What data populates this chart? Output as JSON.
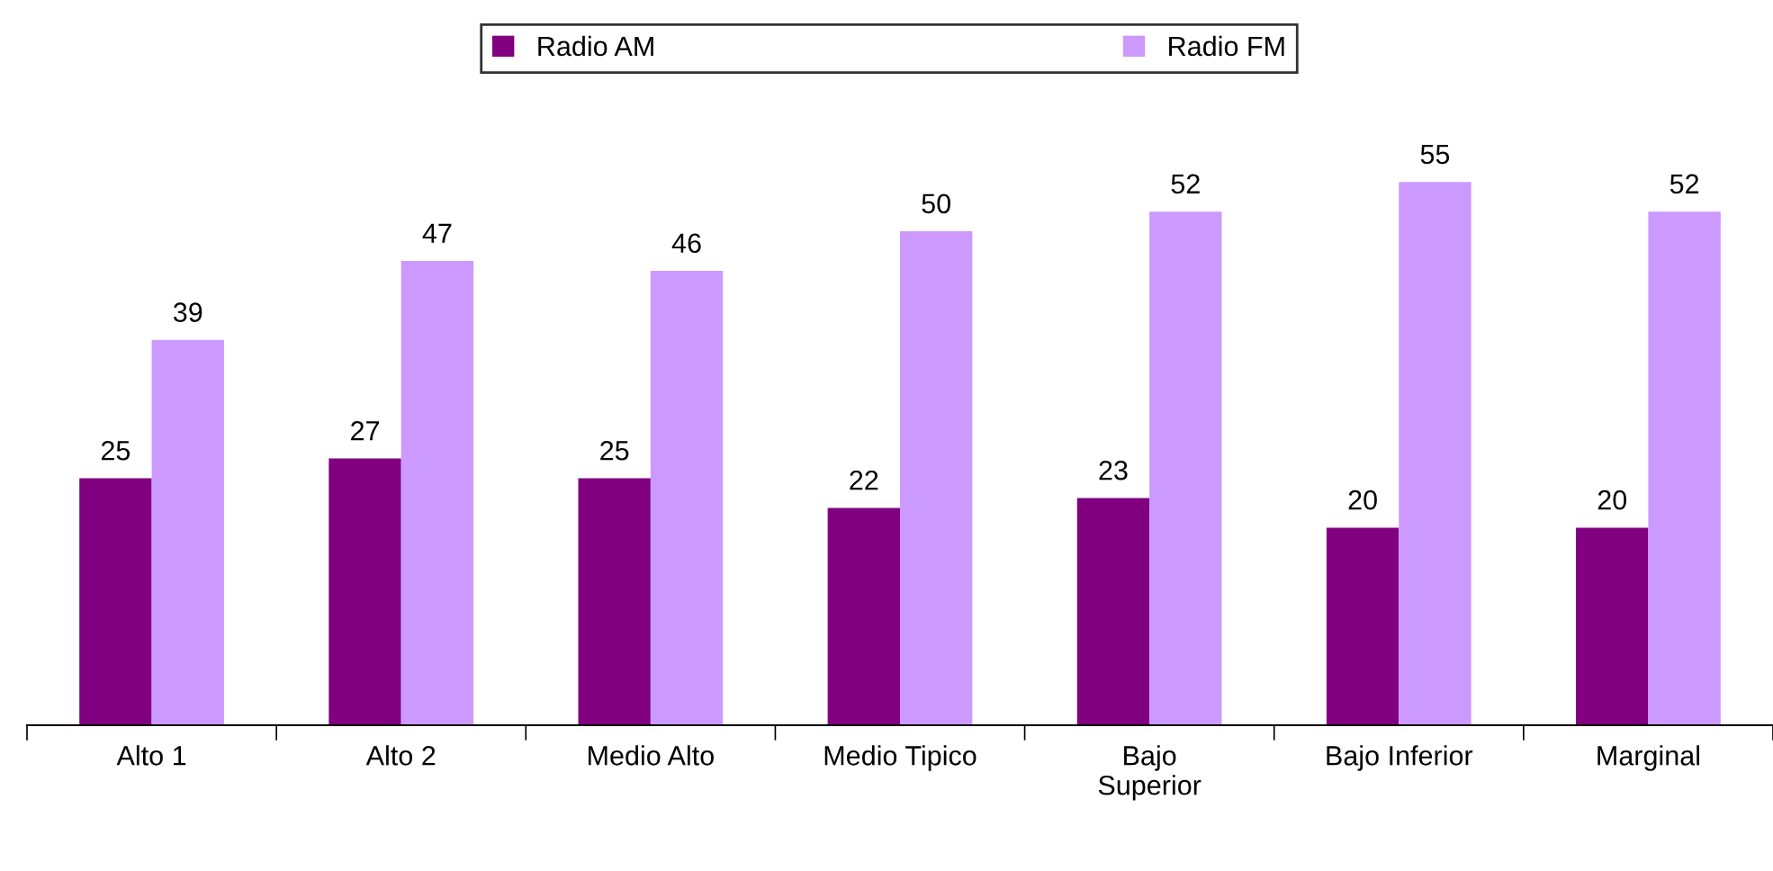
{
  "chart_data": {
    "type": "bar",
    "categories": [
      "Alto 1",
      "Alto 2",
      "Medio Alto",
      "Medio Tipico",
      "Bajo\nSuperior",
      "Bajo Inferior",
      "Marginal"
    ],
    "series": [
      {
        "name": "Radio AM",
        "color": "#800080",
        "values": [
          25,
          27,
          25,
          22,
          23,
          20,
          20
        ]
      },
      {
        "name": "Radio FM",
        "color": "#cc99ff",
        "values": [
          39,
          47,
          46,
          50,
          52,
          55,
          52
        ]
      }
    ],
    "tick_labels": "x",
    "data_labels": true,
    "legend": "top",
    "grid": false
  }
}
